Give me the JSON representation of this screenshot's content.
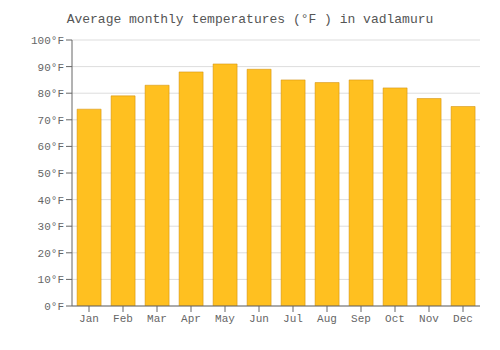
{
  "chart_data": {
    "type": "bar",
    "title": "Average monthly temperatures (°F ) in vadlamuru",
    "categories": [
      "Jan",
      "Feb",
      "Mar",
      "Apr",
      "May",
      "Jun",
      "Jul",
      "Aug",
      "Sep",
      "Oct",
      "Nov",
      "Dec"
    ],
    "values": [
      74,
      79,
      83,
      88,
      91,
      89,
      85,
      84,
      85,
      82,
      78,
      75
    ],
    "color": "#FFC020",
    "ylim": [
      0,
      100
    ],
    "yticks": [
      {
        "value": 0,
        "label": "0°F"
      },
      {
        "value": 10,
        "label": "10°F"
      },
      {
        "value": 20,
        "label": "20°F"
      },
      {
        "value": 30,
        "label": "30°F"
      },
      {
        "value": 40,
        "label": "40°F"
      },
      {
        "value": 50,
        "label": "50°F"
      },
      {
        "value": 60,
        "label": "60°F"
      },
      {
        "value": 70,
        "label": "70°F"
      },
      {
        "value": 80,
        "label": "80°F"
      },
      {
        "value": 90,
        "label": "90°F"
      },
      {
        "value": 100,
        "label": "100°F"
      }
    ],
    "grid": true
  }
}
